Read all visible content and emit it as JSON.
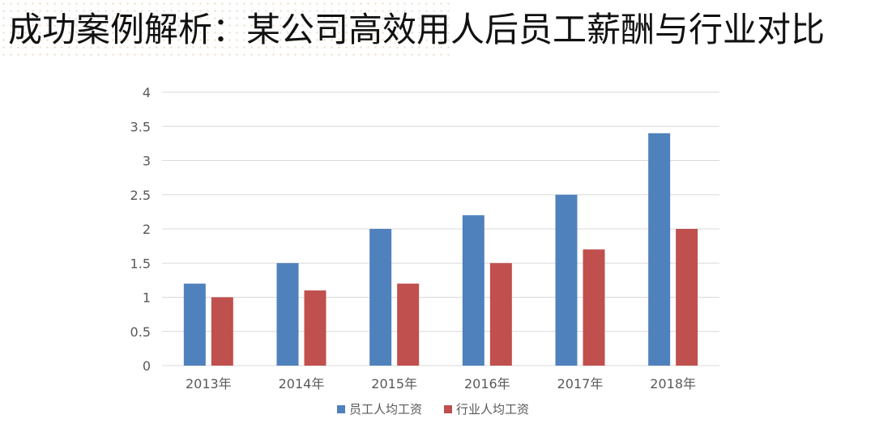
{
  "title": "成功案例解析：某公司高效用人后员工薪酬与行业对比",
  "chart_data": {
    "type": "bar",
    "categories": [
      "2013年",
      "2014年",
      "2015年",
      "2016年",
      "2017年",
      "2018年"
    ],
    "series": [
      {
        "name": "员工人均工资",
        "values": [
          1.2,
          1.5,
          2.0,
          2.2,
          2.5,
          3.4
        ],
        "color": "#4f81bd"
      },
      {
        "name": "行业人均工资",
        "values": [
          1.0,
          1.1,
          1.2,
          1.5,
          1.7,
          2.0
        ],
        "color": "#c0504d"
      }
    ],
    "y_ticks": [
      "0",
      "0.5",
      "1",
      "1.5",
      "2",
      "2.5",
      "3",
      "3.5",
      "4"
    ],
    "ylim": [
      0,
      4
    ],
    "grid": true,
    "legend_position": "bottom",
    "xlabel": "",
    "ylabel": ""
  }
}
